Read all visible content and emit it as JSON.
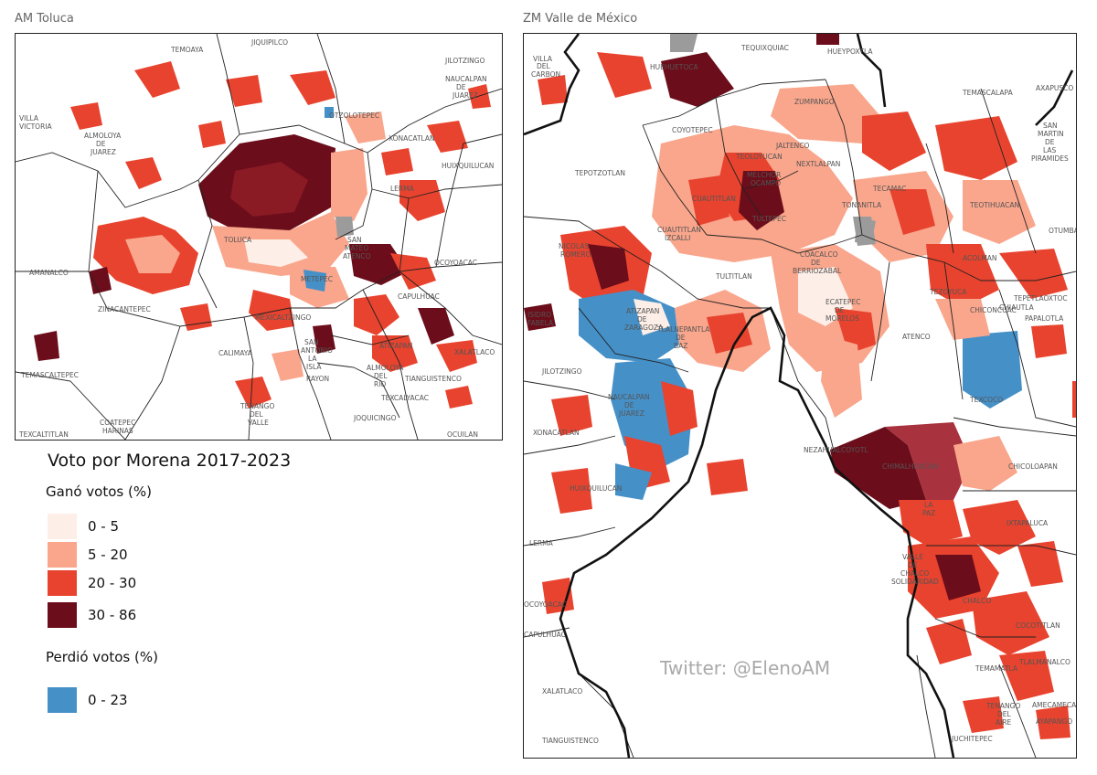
{
  "colors": {
    "c0_5": "#fdeee7",
    "c5_20": "#f9a68c",
    "c20_30": "#e8432e",
    "c30_86": "#6b0d1a",
    "lost": "#4690c8",
    "nodata": "#9b9b9b"
  },
  "left_map": {
    "title": "AM Toluca",
    "labels": [
      "VILLA VICTORIA",
      "ALMOLOYA DE JUAREZ",
      "OTZOLOTEPEC",
      "XONACATLAN",
      "JILOTZINGO",
      "NAUCALPAN DE JUAREZ",
      "HUIXQUILUCAN",
      "LERMA",
      "TOLUCA",
      "SAN MATEO ATENCO",
      "METEPEC",
      "OCOYOACAC",
      "CAPULHUAC",
      "ZINACANTEPEC",
      "AMANALCO",
      "MEXICALTZINGO",
      "CALIMAYA",
      "SAN ANTONIO LA ISLA",
      "RAYON",
      "ATIZAPAN",
      "ALMOLOYA DEL RIO",
      "TIANGUISTENCO",
      "XALATLACO",
      "TEXCALYACAC",
      "JOQUICINGO",
      "TENANGO DEL VALLE",
      "TEMASCALTEPEC",
      "TEXCALTITLAN",
      "COATEPEC HARINAS",
      "OCUILAN",
      "TEMOAYA",
      "JIQUIPILCO"
    ]
  },
  "right_map": {
    "title": "ZM Valle de México",
    "labels": [
      "TEQUIXQUIAC",
      "HUEHUETOCA",
      "HUEYPOXTLA",
      "VILLA DEL CARBON",
      "ZUMPANGO",
      "TEMASCALAPA",
      "AXAPUSCO",
      "COYOTEPEC",
      "TEOLOYUCAN",
      "JALTENCO",
      "NEXTLALPAN",
      "SAN MARTIN DE LAS PIRAMIDES",
      "TEPOTZOTLAN",
      "MELCHOR OCAMPO",
      "CUAUTITLAN",
      "TULTEPEC",
      "TONANITLA",
      "TECAMAC",
      "TEOTIHUACAN",
      "OTUMBA",
      "CUAUTITLAN IZCALLI",
      "NICOLAS ROMERO",
      "TULTITLAN",
      "COACALCO DE BERRIOZABAL",
      "ACOLMAN",
      "TEZOYUCA",
      "TEPETLAOXTOC",
      "ISIDRO FABELA",
      "ATIZAPAN DE ZARAGOZA",
      "TLALNEPANTLA DE BAZ",
      "ECATEPEC DE MORELOS",
      "ATENCO",
      "CHIAUTLA",
      "PAPALOTLA",
      "CHICONCUAC",
      "JILOTZINGO",
      "NAUCALPAN DE JUAREZ",
      "TEXCOCO",
      "XONACATLAN",
      "HUIXQUILUCAN",
      "NEZAHUALCOYOTL",
      "CHIMALHUACAN",
      "CHICOLOAPAN",
      "LA PAZ",
      "IXTAPALUCA",
      "LERMA",
      "VALLE DE CHALCO SOLIDARIDAD",
      "OCOYOACAC",
      "CHALCO",
      "COCOTITLAN",
      "CAPULHUAC",
      "TLALMANALCO",
      "TEMAMATLA",
      "XALATLACO",
      "TENANGO DEL AIRE",
      "AMECAMECA",
      "AYAPANGO",
      "TIANGUISTENCO",
      "JUCHITEPEC"
    ]
  },
  "legend": {
    "title": "Voto por Morena 2017-2023",
    "won_title": "Ganó votos (%)",
    "won": [
      {
        "label": "0 - 5",
        "color": "#fdeee7"
      },
      {
        "label": "5 - 20",
        "color": "#f9a68c"
      },
      {
        "label": "20 - 30",
        "color": "#e8432e"
      },
      {
        "label": "30 - 86",
        "color": "#6b0d1a"
      }
    ],
    "lost_title": "Perdió votos (%)",
    "lost": [
      {
        "label": "0 - 23",
        "color": "#4690c8"
      }
    ]
  },
  "watermark": "Twitter: @ElenoAM"
}
